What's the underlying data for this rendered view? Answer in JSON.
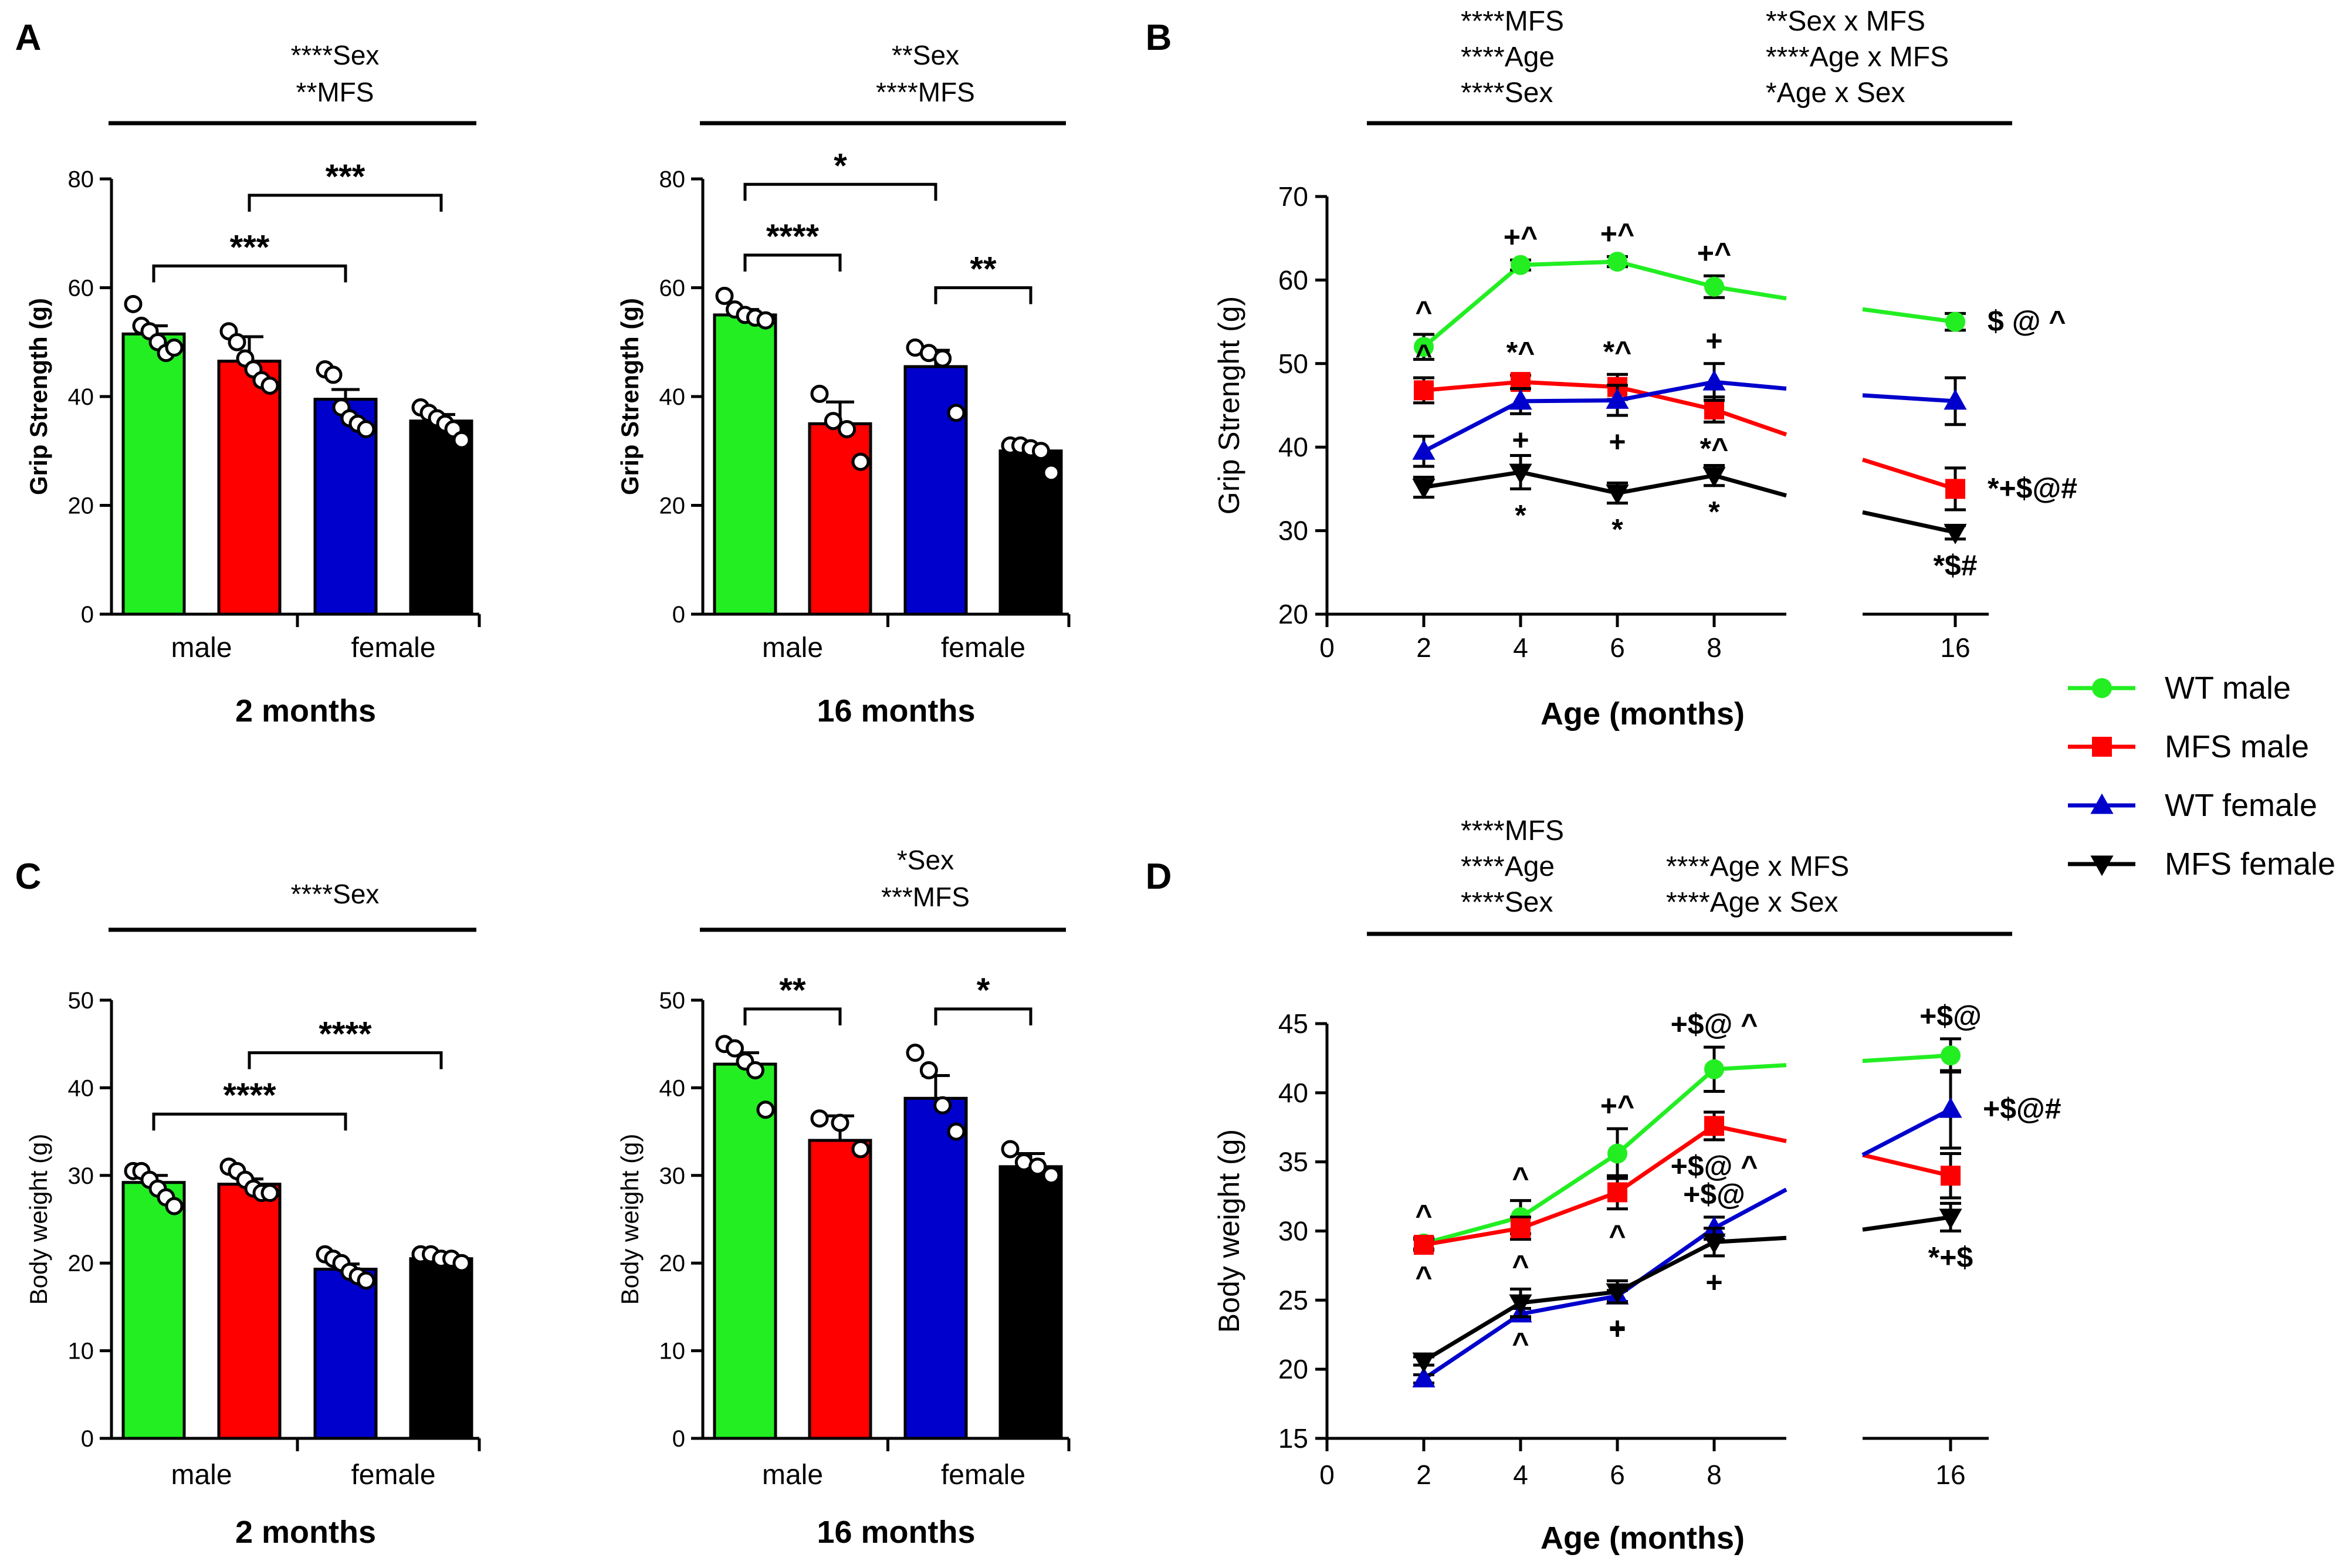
{
  "legend": [
    {
      "name": "WT male",
      "color": "#22ee22",
      "marker": "circle"
    },
    {
      "name": "MFS male",
      "color": "#ff0000",
      "marker": "square"
    },
    {
      "name": "WT female",
      "color": "#0000cc",
      "marker": "triangle-up"
    },
    {
      "name": "MFS female",
      "color": "#000000",
      "marker": "triangle-down"
    }
  ],
  "chart_data": [
    {
      "panel": "A",
      "type": "bar",
      "subtitle": "2 months",
      "stats": [
        "****Sex",
        "**MFS"
      ],
      "ylabel": "Grip Strength (g)",
      "ylim": [
        0,
        80
      ],
      "yticks": [
        0,
        20,
        40,
        60,
        80
      ],
      "group_labels": [
        "male",
        "female"
      ],
      "bars": [
        {
          "series": "WT male",
          "mean": 51.5,
          "sem": 1.5,
          "points": [
            57,
            53,
            52,
            50,
            48,
            49
          ]
        },
        {
          "series": "MFS male",
          "mean": 46.5,
          "sem": 4.5,
          "points": [
            52,
            50,
            47,
            45,
            43,
            42
          ]
        },
        {
          "series": "WT female",
          "mean": 39.5,
          "sem": 1.8,
          "points": [
            45,
            44,
            38,
            36,
            35,
            34
          ]
        },
        {
          "series": "MFS female",
          "mean": 35.5,
          "sem": 1.2,
          "points": [
            38,
            37,
            36,
            35,
            34,
            32
          ]
        }
      ],
      "significance": [
        {
          "from": 0,
          "to": 2,
          "label": "***",
          "y": 64
        },
        {
          "from": 1,
          "to": 3,
          "label": "***",
          "y": 77
        }
      ]
    },
    {
      "panel": "A",
      "type": "bar",
      "subtitle": "16 months",
      "stats": [
        "**Sex",
        "****MFS"
      ],
      "ylabel": "Grip Strength (g)",
      "ylim": [
        0,
        80
      ],
      "yticks": [
        0,
        20,
        40,
        60,
        80
      ],
      "group_labels": [
        "male",
        "female"
      ],
      "bars": [
        {
          "series": "WT male",
          "mean": 55,
          "sem": 1.0,
          "points": [
            58.5,
            56,
            55,
            54.5,
            54
          ]
        },
        {
          "series": "MFS male",
          "mean": 35,
          "sem": 4.0,
          "points": [
            40.5,
            35.5,
            34,
            28
          ]
        },
        {
          "series": "WT female",
          "mean": 45.5,
          "sem": 3.0,
          "points": [
            49,
            48,
            47,
            37
          ]
        },
        {
          "series": "MFS female",
          "mean": 30,
          "sem": 1.0,
          "points": [
            31,
            31,
            30.5,
            30,
            26
          ]
        }
      ],
      "significance": [
        {
          "from": 0,
          "to": 2,
          "label": "*",
          "y": 79
        },
        {
          "from": 0,
          "to": 1,
          "label": "****",
          "y": 66
        },
        {
          "from": 2,
          "to": 3,
          "label": "**",
          "y": 60
        }
      ]
    },
    {
      "panel": "C",
      "type": "bar",
      "subtitle": "2 months",
      "stats": [
        "****Sex"
      ],
      "ylabel": "Body weight (g)",
      "ylim": [
        0,
        50
      ],
      "yticks": [
        0,
        10,
        20,
        30,
        40,
        50
      ],
      "group_labels": [
        "male",
        "female"
      ],
      "bars": [
        {
          "series": "WT male",
          "mean": 29.2,
          "sem": 0.8,
          "points": [
            30.5,
            30.5,
            29.5,
            28.5,
            27.5,
            26.5
          ]
        },
        {
          "series": "MFS male",
          "mean": 29,
          "sem": 0.6,
          "points": [
            31,
            30.5,
            29.5,
            28.5,
            28,
            28
          ]
        },
        {
          "series": "WT female",
          "mean": 19.3,
          "sem": 0.6,
          "points": [
            21,
            20.5,
            20,
            19,
            18.5,
            18
          ]
        },
        {
          "series": "MFS female",
          "mean": 20.5,
          "sem": 0.3,
          "points": [
            21,
            21,
            20.5,
            20.5,
            20
          ]
        }
      ],
      "significance": [
        {
          "from": 0,
          "to": 2,
          "label": "****",
          "y": 37
        },
        {
          "from": 1,
          "to": 3,
          "label": "****",
          "y": 44
        }
      ]
    },
    {
      "panel": "C",
      "type": "bar",
      "subtitle": "16 months",
      "stats": [
        "*Sex",
        "***MFS"
      ],
      "ylabel": "Body weight (g)",
      "ylim": [
        0,
        50
      ],
      "yticks": [
        0,
        10,
        20,
        30,
        40,
        50
      ],
      "group_labels": [
        "male",
        "female"
      ],
      "bars": [
        {
          "series": "WT male",
          "mean": 42.7,
          "sem": 1.3,
          "points": [
            45,
            44.5,
            43,
            42,
            37.5
          ]
        },
        {
          "series": "MFS male",
          "mean": 34,
          "sem": 2.8,
          "points": [
            36.5,
            36,
            33
          ]
        },
        {
          "series": "WT female",
          "mean": 38.8,
          "sem": 2.6,
          "points": [
            44,
            42,
            38,
            35
          ]
        },
        {
          "series": "MFS female",
          "mean": 31,
          "sem": 1.5,
          "points": [
            33,
            31.5,
            31,
            30
          ]
        }
      ],
      "significance": [
        {
          "from": 0,
          "to": 1,
          "label": "**",
          "y": 49
        },
        {
          "from": 2,
          "to": 3,
          "label": "*",
          "y": 49
        }
      ]
    },
    {
      "panel": "B",
      "type": "line",
      "stats": [
        [
          "****MFS",
          "**Sex x MFS"
        ],
        [
          "****Age",
          "****Age x MFS"
        ],
        [
          "****Sex",
          "*Age x Sex"
        ]
      ],
      "xlabel": "Age (months)",
      "ylabel": "Grip Strenght (g)",
      "ylim": [
        20,
        70
      ],
      "yticks": [
        20,
        30,
        40,
        50,
        60,
        70
      ],
      "xticks_left": [
        0,
        2,
        4,
        6,
        8
      ],
      "xtick_right": 16,
      "series": [
        {
          "name": "WT male",
          "x": [
            2,
            4,
            6,
            8
          ],
          "y": [
            52,
            61.8,
            62.2,
            59.2
          ],
          "err": [
            1.5,
            0.6,
            0.6,
            1.3
          ],
          "trend": [
            59.2,
            57.8
          ],
          "x16": 55,
          "err16": 1.0,
          "right_in": 56.5,
          "annot": [
            {
              "x": 2,
              "t": "^",
              "above": true
            },
            {
              "x": 4,
              "t": "+^",
              "above": true
            },
            {
              "x": 6,
              "t": "+^",
              "above": true
            },
            {
              "x": 8,
              "t": "+^",
              "above": true
            },
            {
              "x": 16,
              "t": "$ @ ^",
              "above": true
            }
          ]
        },
        {
          "name": "MFS male",
          "x": [
            2,
            4,
            6,
            8
          ],
          "y": [
            46.8,
            47.8,
            47.2,
            44.5
          ],
          "err": [
            1.5,
            0.8,
            1.5,
            1.5
          ],
          "trend": [
            44.5,
            41.5
          ],
          "x16": 35,
          "err16": 2.5,
          "right_in": 38.5,
          "annot": [
            {
              "x": 2,
              "t": "^",
              "above": true
            },
            {
              "x": 4,
              "t": "*^",
              "above": true
            },
            {
              "x": 6,
              "t": "*^",
              "above": true
            },
            {
              "x": 8,
              "t": "*^",
              "above": false
            },
            {
              "x": 16,
              "t": "*+$@#",
              "above": true
            }
          ]
        },
        {
          "name": "WT female",
          "x": [
            2,
            4,
            6,
            8
          ],
          "y": [
            39.5,
            45.5,
            45.6,
            47.8
          ],
          "err": [
            1.8,
            1.5,
            1.8,
            2.2
          ],
          "trend": [
            47.8,
            47.0
          ],
          "x16": 45.5,
          "err16": 2.8,
          "right_in": 46.2,
          "annot": [
            {
              "x": 4,
              "t": "+",
              "above": false
            },
            {
              "x": 6,
              "t": "+",
              "above": false
            },
            {
              "x": 8,
              "t": "+",
              "above": true
            }
          ]
        },
        {
          "name": "MFS female",
          "x": [
            2,
            4,
            6,
            8
          ],
          "y": [
            35.2,
            37,
            34.5,
            36.6
          ],
          "err": [
            1.2,
            2.0,
            1.2,
            1.2
          ],
          "trend": [
            36.6,
            34.2
          ],
          "x16": 29.8,
          "err16": 0.8,
          "right_in": 32.2,
          "annot": [
            {
              "x": 4,
              "t": "*",
              "above": false
            },
            {
              "x": 6,
              "t": "*",
              "above": false
            },
            {
              "x": 8,
              "t": "*",
              "above": false
            },
            {
              "x": 16,
              "t": "*$#",
              "above": false
            }
          ]
        }
      ]
    },
    {
      "panel": "D",
      "type": "line",
      "stats": [
        [
          "****MFS",
          ""
        ],
        [
          "****Age",
          "****Age x MFS"
        ],
        [
          "****Sex",
          "****Age x Sex"
        ]
      ],
      "xlabel": "Age (months)",
      "ylabel": "Body weight (g)",
      "ylim": [
        15,
        45
      ],
      "yticks": [
        15,
        20,
        25,
        30,
        35,
        40,
        45
      ],
      "xticks_left": [
        0,
        2,
        4,
        6,
        8
      ],
      "xtick_right": 16,
      "series": [
        {
          "name": "WT male",
          "x": [
            2,
            4,
            6,
            8
          ],
          "y": [
            29.1,
            31,
            35.6,
            41.7
          ],
          "err": [
            0.4,
            1.2,
            1.8,
            1.6
          ],
          "trend": [
            41.7,
            42.0
          ],
          "x16": 42.7,
          "err16": 1.2,
          "right_in": 42.3,
          "annot": [
            {
              "x": 2,
              "t": "^",
              "above": true
            },
            {
              "x": 4,
              "t": "^",
              "above": true
            },
            {
              "x": 6,
              "t": "+^",
              "above": true
            },
            {
              "x": 8,
              "t": "+$@ ^",
              "above": true
            },
            {
              "x": 16,
              "t": "+$@",
              "above": true
            }
          ]
        },
        {
          "name": "MFS male",
          "x": [
            2,
            4,
            6,
            8
          ],
          "y": [
            29,
            30.2,
            32.8,
            37.6
          ],
          "err": [
            0.4,
            0.8,
            1.2,
            1.0
          ],
          "trend": [
            37.6,
            36.5
          ],
          "x16": 34,
          "err16": 1.6,
          "right_in": 35.5,
          "annot": [
            {
              "x": 2,
              "t": "^",
              "above": false
            },
            {
              "x": 4,
              "t": "^",
              "above": false
            },
            {
              "x": 6,
              "t": "^",
              "above": false
            },
            {
              "x": 8,
              "t": "+$@ ^",
              "above": false
            }
          ]
        },
        {
          "name": "WT female",
          "x": [
            2,
            4,
            6,
            8
          ],
          "y": [
            19.3,
            24,
            25.3,
            30.2
          ],
          "err": [
            0.3,
            0.4,
            0.4,
            0.8
          ],
          "trend": [
            30.2,
            33.0
          ],
          "x16": 38.8,
          "err16": 2.8,
          "right_in": 35.5,
          "annot": [
            {
              "x": 6,
              "t": "+",
              "above": false
            },
            {
              "x": 8,
              "t": "+$@",
              "above": true
            },
            {
              "x": 16,
              "t": "+$@#",
              "above": true
            }
          ]
        },
        {
          "name": "MFS female",
          "x": [
            2,
            4,
            6,
            8
          ],
          "y": [
            20.6,
            24.8,
            25.6,
            29.2
          ],
          "err": [
            0.3,
            1.0,
            0.8,
            1.0
          ],
          "trend": [
            29.2,
            29.5
          ],
          "x16": 31,
          "err16": 1.0,
          "right_in": 30.1,
          "annot": [
            {
              "x": 4,
              "t": "^",
              "above": false
            },
            {
              "x": 6,
              "t": "+",
              "above": false
            },
            {
              "x": 8,
              "t": "+",
              "above": false
            },
            {
              "x": 16,
              "t": "*+$",
              "above": false
            }
          ]
        }
      ]
    }
  ]
}
